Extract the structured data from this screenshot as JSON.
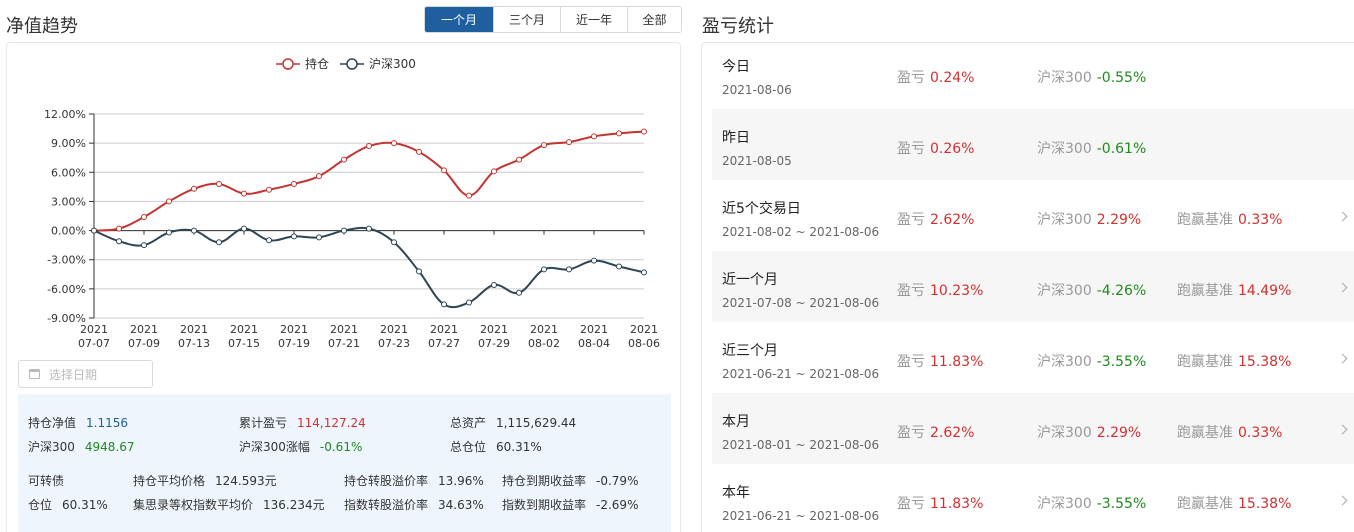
{
  "left": {
    "title": "净值趋势",
    "tabs": [
      {
        "label": "一个月",
        "active": true
      },
      {
        "label": "三个月",
        "active": false
      },
      {
        "label": "近一年",
        "active": false
      },
      {
        "label": "全部",
        "active": false
      }
    ],
    "date_placeholder": "选择日期",
    "stats": {
      "holding_nav_label": "持仓净值",
      "holding_nav_value": "1.1156",
      "cum_pnl_label": "累计盈亏",
      "cum_pnl_value": "114,127.24",
      "total_assets_label": "总资产",
      "total_assets_value": "1,115,629.44",
      "hs300_label": "沪深300",
      "hs300_value": "4948.67",
      "hs300_change_label": "沪深300涨幅",
      "hs300_change_value": "-0.61%",
      "total_position_label": "总仓位",
      "total_position_value": "60.31%",
      "cb_label": "可转债",
      "avg_price_label": "持仓平均价格",
      "avg_price_value": "124.593元",
      "conv_premium_label": "持仓转股溢价率",
      "conv_premium_value": "13.96%",
      "ytm_label": "持仓到期收益率",
      "ytm_value": "-0.79%",
      "position_label": "仓位",
      "position_value": "60.31%",
      "index_avg_label": "集思录等权指数平均价",
      "index_avg_value": "136.234元",
      "index_premium_label": "指数转股溢价率",
      "index_premium_value": "34.63%",
      "index_ytm_label": "指数到期收益率",
      "index_ytm_value": "-2.69%"
    }
  },
  "chart_data": {
    "type": "line",
    "x": [
      "2021-07-07",
      "2021-07-08",
      "2021-07-09",
      "2021-07-12",
      "2021-07-13",
      "2021-07-14",
      "2021-07-15",
      "2021-07-16",
      "2021-07-19",
      "2021-07-20",
      "2021-07-21",
      "2021-07-22",
      "2021-07-23",
      "2021-07-26",
      "2021-07-27",
      "2021-07-28",
      "2021-07-29",
      "2021-07-30",
      "2021-08-02",
      "2021-08-03",
      "2021-08-04",
      "2021-08-05",
      "2021-08-06"
    ],
    "tick_labels": [
      {
        "year": "2021",
        "md": "07-07"
      },
      {
        "year": "2021",
        "md": "07-09"
      },
      {
        "year": "2021",
        "md": "07-13"
      },
      {
        "year": "2021",
        "md": "07-15"
      },
      {
        "year": "2021",
        "md": "07-19"
      },
      {
        "year": "2021",
        "md": "07-21"
      },
      {
        "year": "2021",
        "md": "07-23"
      },
      {
        "year": "2021",
        "md": "07-27"
      },
      {
        "year": "2021",
        "md": "07-29"
      },
      {
        "year": "2021",
        "md": "08-02"
      },
      {
        "year": "2021",
        "md": "08-04"
      },
      {
        "year": "2021",
        "md": "08-06"
      }
    ],
    "y_ticks": [
      "12.00%",
      "9.00%",
      "6.00%",
      "3.00%",
      "0.00%",
      "-3.00%",
      "-6.00%",
      "-9.00%"
    ],
    "ylim": [
      -9,
      12
    ],
    "grid": true,
    "legend_position": "top-center",
    "series": [
      {
        "name": "持仓",
        "color": "#c23531",
        "values": [
          0,
          0.2,
          1.4,
          3.0,
          4.3,
          4.8,
          3.8,
          4.2,
          4.8,
          5.6,
          7.3,
          8.7,
          9.0,
          8.1,
          6.2,
          3.6,
          6.1,
          7.3,
          8.8,
          9.1,
          9.7,
          10.0,
          10.2
        ]
      },
      {
        "name": "沪深300",
        "color": "#2f4554",
        "values": [
          0,
          -1.1,
          -1.5,
          -0.2,
          0.0,
          -1.2,
          0.2,
          -1.0,
          -0.6,
          -0.7,
          0.0,
          0.2,
          -1.2,
          -4.2,
          -7.6,
          -7.4,
          -5.6,
          -6.4,
          -4.0,
          -4.0,
          -3.1,
          -3.7,
          -4.3
        ]
      }
    ]
  },
  "right": {
    "title": "盈亏统计",
    "rows": [
      {
        "title": "今日",
        "date": "2021-08-06",
        "pnl_label": "盈亏",
        "pnl": "0.24%",
        "hs_label": "沪深300",
        "hs": "-0.55%",
        "beat_label": "",
        "beat": ""
      },
      {
        "title": "昨日",
        "date": "2021-08-05",
        "pnl_label": "盈亏",
        "pnl": "0.26%",
        "hs_label": "沪深300",
        "hs": "-0.61%",
        "beat_label": "",
        "beat": ""
      },
      {
        "title": "近5个交易日",
        "date": "2021-08-02 ~ 2021-08-06",
        "pnl_label": "盈亏",
        "pnl": "2.62%",
        "hs_label": "沪深300",
        "hs": "2.29%",
        "beat_label": "跑赢基准",
        "beat": "0.33%"
      },
      {
        "title": "近一个月",
        "date": "2021-07-08 ~ 2021-08-06",
        "pnl_label": "盈亏",
        "pnl": "10.23%",
        "hs_label": "沪深300",
        "hs": "-4.26%",
        "beat_label": "跑赢基准",
        "beat": "14.49%"
      },
      {
        "title": "近三个月",
        "date": "2021-06-21 ~ 2021-08-06",
        "pnl_label": "盈亏",
        "pnl": "11.83%",
        "hs_label": "沪深300",
        "hs": "-3.55%",
        "beat_label": "跑赢基准",
        "beat": "15.38%"
      },
      {
        "title": "本月",
        "date": "2021-08-01 ~ 2021-08-06",
        "pnl_label": "盈亏",
        "pnl": "2.62%",
        "hs_label": "沪深300",
        "hs": "2.29%",
        "beat_label": "跑赢基准",
        "beat": "0.33%"
      },
      {
        "title": "本年",
        "date": "2021-06-21 ~ 2021-08-06",
        "pnl_label": "盈亏",
        "pnl": "11.83%",
        "hs_label": "沪深300",
        "hs": "-3.55%",
        "beat_label": "跑赢基准",
        "beat": "15.38%"
      }
    ]
  }
}
